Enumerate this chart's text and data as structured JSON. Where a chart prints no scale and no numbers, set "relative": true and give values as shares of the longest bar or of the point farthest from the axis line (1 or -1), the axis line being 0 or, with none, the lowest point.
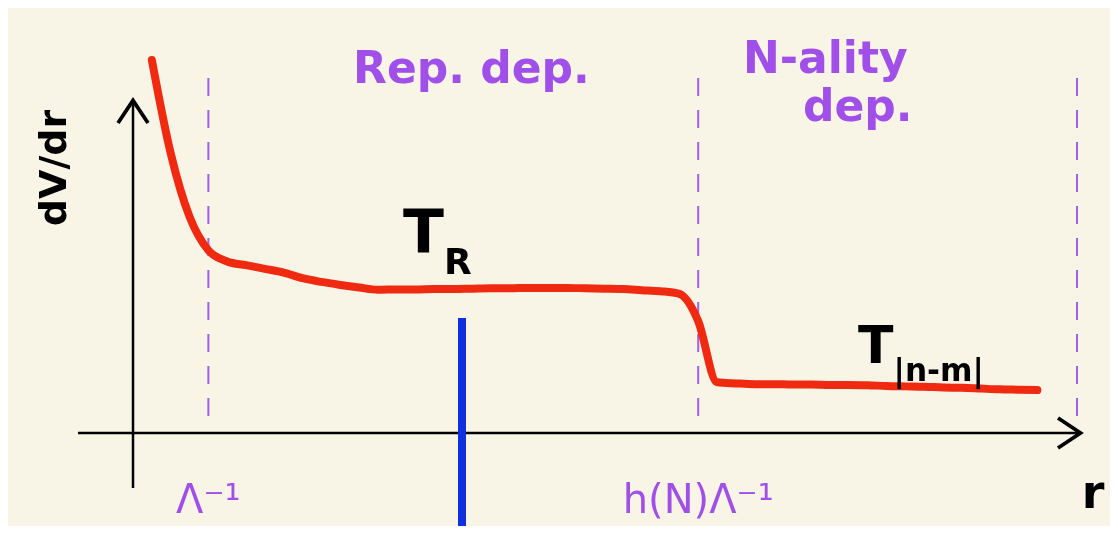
{
  "chart_data": {
    "type": "line",
    "relative": true,
    "xlabel": "r",
    "ylabel": "dV/dr",
    "categories": [
      null,
      null,
      null,
      null,
      "Λ⁻¹",
      null,
      null,
      null,
      null,
      null,
      null,
      null,
      null,
      null,
      null,
      null,
      null,
      null,
      null,
      null,
      null,
      null,
      null,
      null,
      null,
      null,
      null,
      null,
      null,
      null,
      "h(N)Λ⁻¹",
      null,
      null,
      null,
      null,
      null,
      null,
      null,
      null,
      null,
      null,
      null,
      null,
      null,
      null,
      null,
      null,
      null,
      null,
      null,
      null
    ],
    "grid": "x",
    "series": [
      {
        "color": "#f02a10",
        "values": [
          null,
          1.0,
          0.75,
          0.58,
          0.49,
          0.46,
          0.45,
          0.44,
          0.43,
          0.415,
          0.405,
          0.397,
          0.39,
          0.384,
          0.385,
          0.385,
          0.386,
          0.386,
          0.387,
          0.388,
          0.388,
          0.389,
          0.389,
          0.389,
          0.388,
          0.387,
          0.386,
          0.383,
          0.38,
          0.373,
          0.3,
          0.136,
          0.133,
          0.131,
          0.131,
          0.13,
          0.13,
          0.129,
          0.129,
          0.128,
          0.126,
          0.125,
          0.124,
          0.122,
          0.121,
          0.119,
          0.117,
          0.116,
          0.115,
          null,
          null
        ]
      }
    ],
    "annotations": [
      "Rep. dep.",
      "N-ality dep.",
      "T$_{R}$",
      "T$_{|n-m|}$"
    ]
  }
}
